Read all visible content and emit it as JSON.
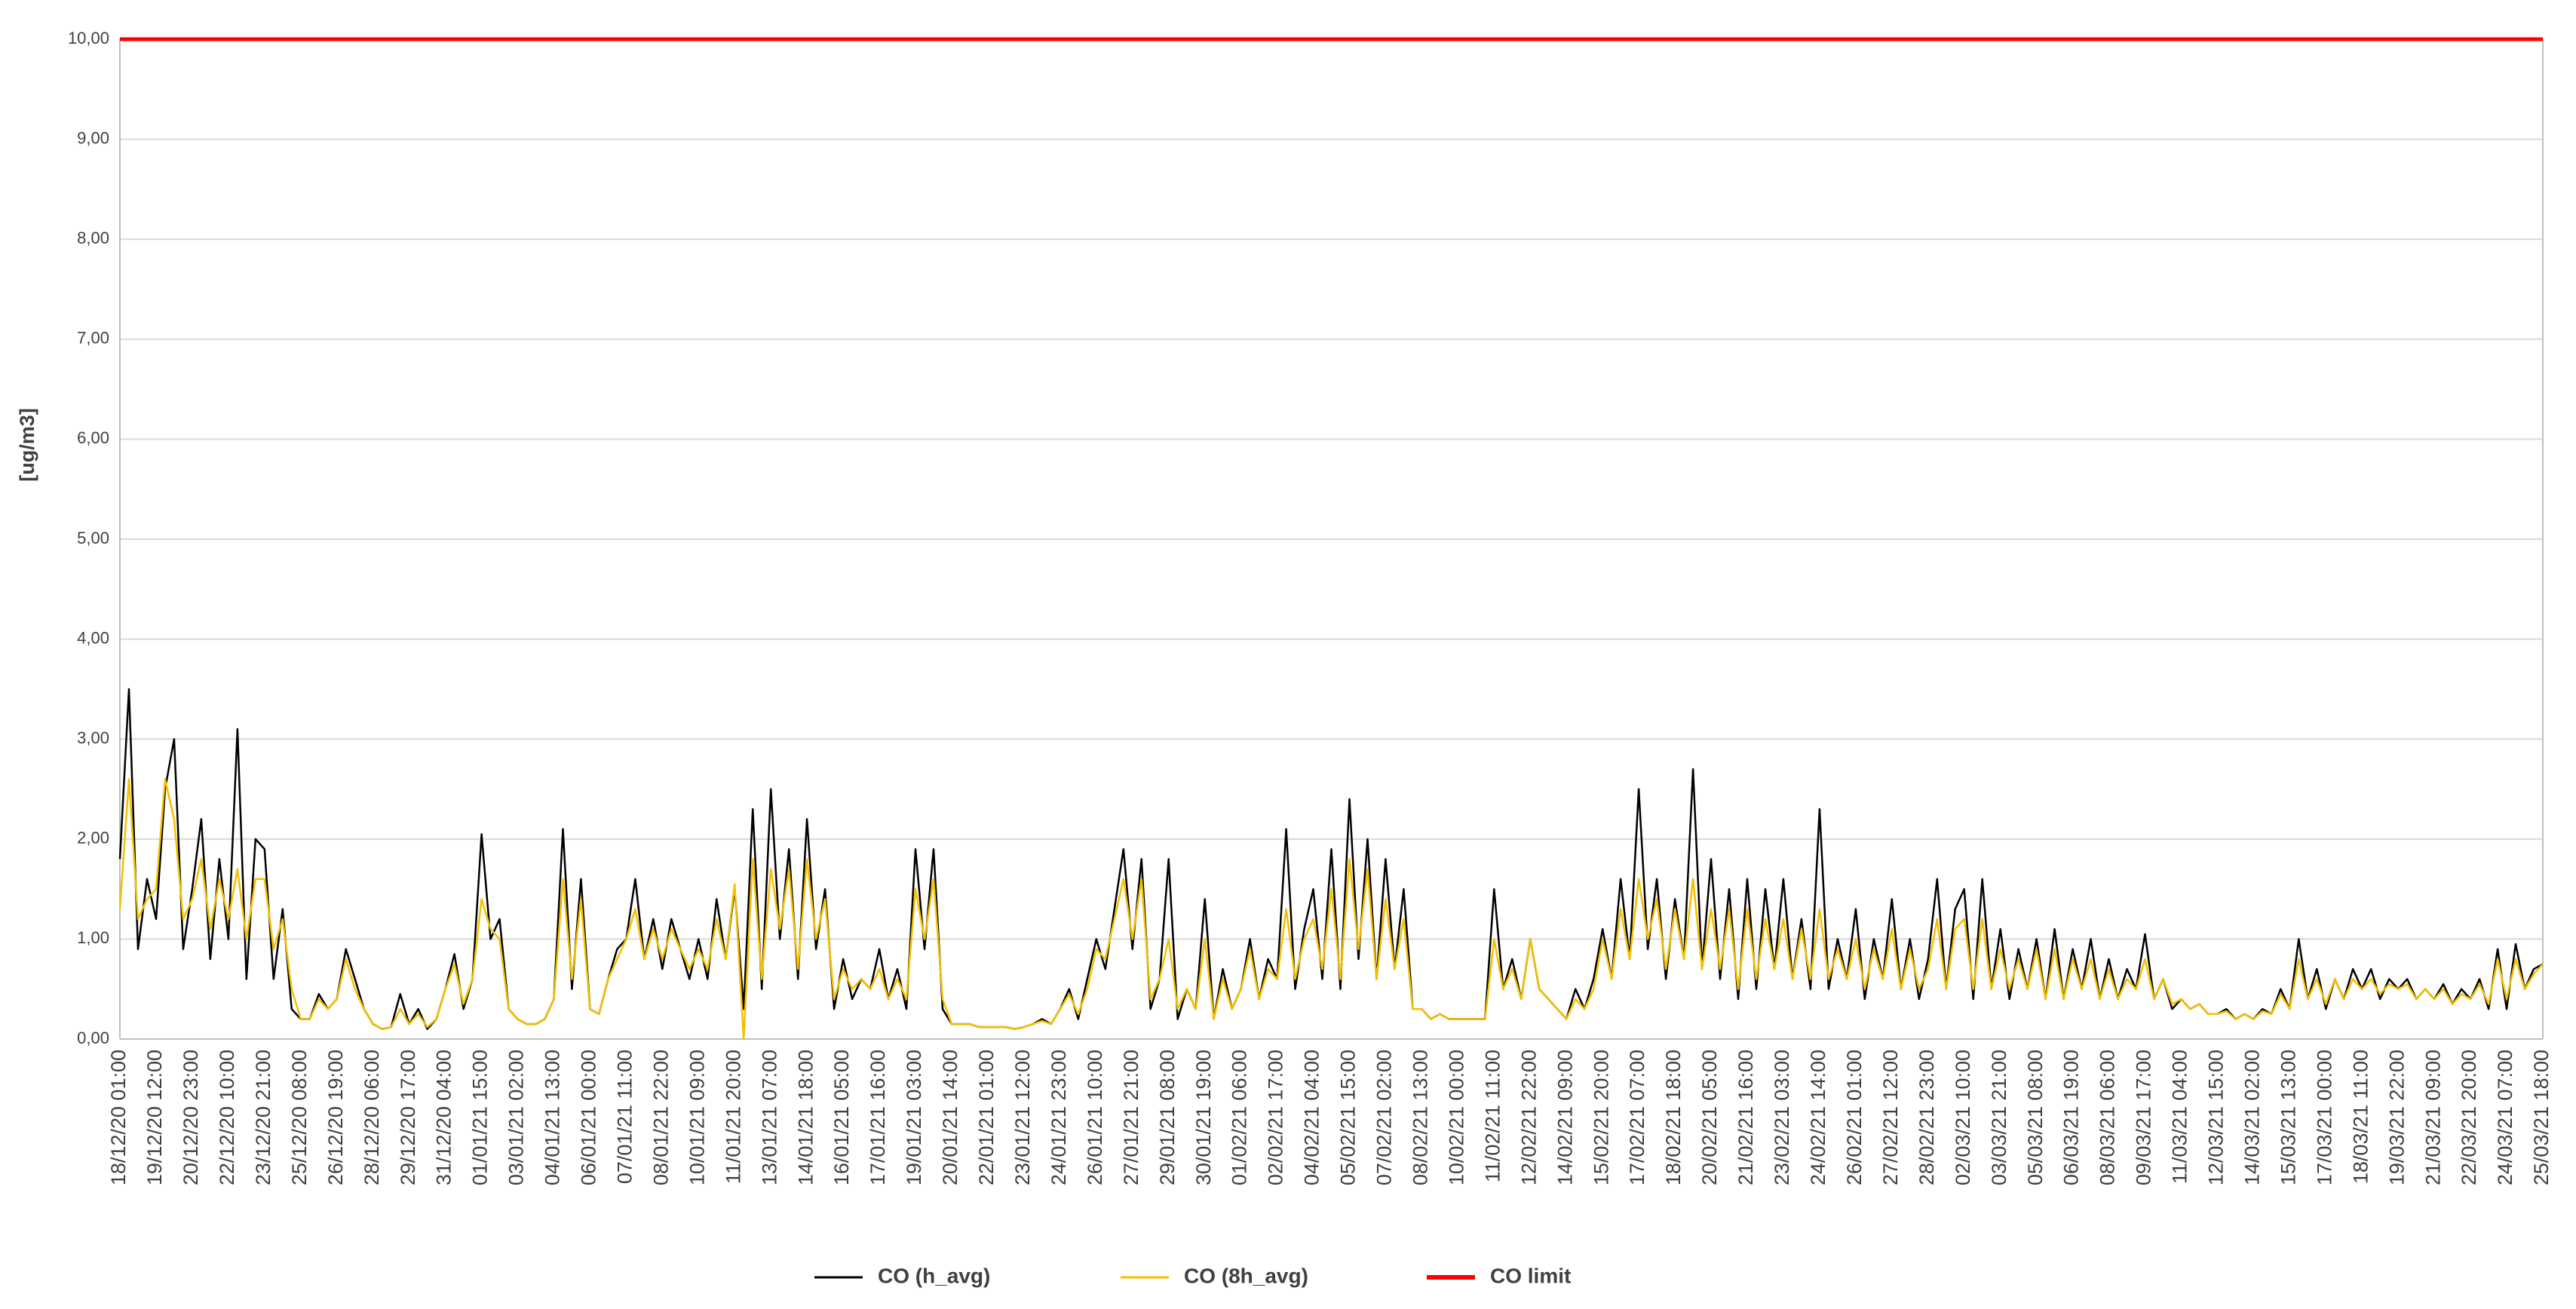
{
  "chart_data": {
    "type": "line",
    "y_label": "[ug/m3]",
    "ylim": [
      0,
      10
    ],
    "yticks": [
      {
        "value": 0,
        "label": "0,00"
      },
      {
        "value": 1,
        "label": "1,00"
      },
      {
        "value": 2,
        "label": "2,00"
      },
      {
        "value": 3,
        "label": "3,00"
      },
      {
        "value": 4,
        "label": "4,00"
      },
      {
        "value": 5,
        "label": "5,00"
      },
      {
        "value": 6,
        "label": "6,00"
      },
      {
        "value": 7,
        "label": "7,00"
      },
      {
        "value": 8,
        "label": "8,00"
      },
      {
        "value": 9,
        "label": "9,00"
      },
      {
        "value": 10,
        "label": "10,00"
      }
    ],
    "grid": true,
    "legend": "bottom",
    "categories": [
      "18/12/20 01:00",
      null,
      null,
      null,
      "19/12/20 12:00",
      null,
      null,
      null,
      "20/12/20 23:00",
      null,
      null,
      null,
      "22/12/20 10:00",
      null,
      null,
      null,
      "23/12/20 21:00",
      null,
      null,
      null,
      "25/12/20 08:00",
      null,
      null,
      null,
      "26/12/20 19:00",
      null,
      null,
      null,
      "28/12/20 06:00",
      null,
      null,
      null,
      "29/12/20 17:00",
      null,
      null,
      null,
      "31/12/20 04:00",
      null,
      null,
      null,
      "01/01/21 15:00",
      null,
      null,
      null,
      "03/01/21 02:00",
      null,
      null,
      null,
      "04/01/21 13:00",
      null,
      null,
      null,
      "06/01/21 00:00",
      null,
      null,
      null,
      "07/01/21 11:00",
      null,
      null,
      null,
      "08/01/21 22:00",
      null,
      null,
      null,
      "10/01/21 09:00",
      null,
      null,
      null,
      "11/01/21 20:00",
      null,
      null,
      null,
      "13/01/21 07:00",
      null,
      null,
      null,
      "14/01/21 18:00",
      null,
      null,
      null,
      "16/01/21 05:00",
      null,
      null,
      null,
      "17/01/21 16:00",
      null,
      null,
      null,
      "19/01/21 03:00",
      null,
      null,
      null,
      "20/01/21 14:00",
      null,
      null,
      null,
      "22/01/21 01:00",
      null,
      null,
      null,
      "23/01/21 12:00",
      null,
      null,
      null,
      "24/01/21 23:00",
      null,
      null,
      null,
      "26/01/21 10:00",
      null,
      null,
      null,
      "27/01/21 21:00",
      null,
      null,
      null,
      "29/01/21 08:00",
      null,
      null,
      null,
      "30/01/21 19:00",
      null,
      null,
      null,
      "01/02/21 06:00",
      null,
      null,
      null,
      "02/02/21 17:00",
      null,
      null,
      null,
      "04/02/21 04:00",
      null,
      null,
      null,
      "05/02/21 15:00",
      null,
      null,
      null,
      "07/02/21 02:00",
      null,
      null,
      null,
      "08/02/21 13:00",
      null,
      null,
      null,
      "10/02/21 00:00",
      null,
      null,
      null,
      "11/02/21 11:00",
      null,
      null,
      null,
      "12/02/21 22:00",
      null,
      null,
      null,
      "14/02/21 09:00",
      null,
      null,
      null,
      "15/02/21 20:00",
      null,
      null,
      null,
      "17/02/21 07:00",
      null,
      null,
      null,
      "18/02/21 18:00",
      null,
      null,
      null,
      "20/02/21 05:00",
      null,
      null,
      null,
      "21/02/21 16:00",
      null,
      null,
      null,
      "23/02/21 03:00",
      null,
      null,
      null,
      "24/02/21 14:00",
      null,
      null,
      null,
      "26/02/21 01:00",
      null,
      null,
      null,
      "27/02/21 12:00",
      null,
      null,
      null,
      "28/02/21 23:00",
      null,
      null,
      null,
      "02/03/21 10:00",
      null,
      null,
      null,
      "03/03/21 21:00",
      null,
      null,
      null,
      "05/03/21 08:00",
      null,
      null,
      null,
      "06/03/21 19:00",
      null,
      null,
      null,
      "08/03/21 06:00",
      null,
      null,
      null,
      "09/03/21 17:00",
      null,
      null,
      null,
      "11/03/21 04:00",
      null,
      null,
      null,
      "12/03/21 15:00",
      null,
      null,
      null,
      "14/03/21 02:00",
      null,
      null,
      null,
      "15/03/21 13:00",
      null,
      null,
      null,
      "17/03/21 00:00",
      null,
      null,
      null,
      "18/03/21 11:00",
      null,
      null,
      null,
      "19/03/21 22:00",
      null,
      null,
      null,
      "21/03/21 09:00",
      null,
      null,
      null,
      "22/03/21 20:00",
      null,
      null,
      null,
      "24/03/21 07:00",
      null,
      null,
      null,
      "25/03/21 18:00"
    ],
    "series": [
      {
        "name": "CO (h_avg)",
        "color": "#000000",
        "values": [
          1.8,
          3.5,
          0.9,
          1.6,
          1.2,
          2.5,
          3.0,
          0.9,
          1.5,
          2.2,
          0.8,
          1.8,
          1.0,
          3.1,
          0.6,
          2.0,
          1.9,
          0.6,
          1.3,
          0.3,
          0.2,
          0.2,
          0.45,
          0.3,
          0.4,
          0.9,
          0.6,
          0.3,
          0.15,
          0.1,
          0.12,
          0.45,
          0.15,
          0.3,
          0.1,
          0.2,
          0.5,
          0.85,
          0.3,
          0.6,
          2.05,
          1.0,
          1.2,
          0.3,
          0.2,
          0.15,
          0.15,
          0.2,
          0.4,
          2.1,
          0.5,
          1.6,
          0.3,
          0.25,
          0.6,
          0.9,
          1.0,
          1.6,
          0.8,
          1.2,
          0.7,
          1.2,
          0.9,
          0.6,
          1.0,
          0.6,
          1.4,
          0.8,
          1.5,
          0.3,
          2.3,
          0.5,
          2.5,
          1.0,
          1.9,
          0.6,
          2.2,
          0.9,
          1.5,
          0.3,
          0.8,
          0.4,
          0.6,
          0.5,
          0.9,
          0.4,
          0.7,
          0.3,
          1.9,
          0.9,
          1.9,
          0.3,
          0.15,
          0.15,
          0.15,
          0.12,
          0.12,
          0.12,
          0.12,
          0.1,
          0.12,
          0.15,
          0.2,
          0.15,
          0.3,
          0.5,
          0.2,
          0.6,
          1.0,
          0.7,
          1.3,
          1.9,
          0.9,
          1.8,
          0.3,
          0.6,
          1.8,
          0.2,
          0.5,
          0.3,
          1.4,
          0.2,
          0.7,
          0.3,
          0.5,
          1.0,
          0.4,
          0.8,
          0.6,
          2.1,
          0.5,
          1.1,
          1.5,
          0.6,
          1.9,
          0.5,
          2.4,
          0.8,
          2.0,
          0.6,
          1.8,
          0.7,
          1.5,
          0.3,
          0.3,
          0.2,
          0.25,
          0.2,
          0.2,
          0.2,
          0.2,
          0.2,
          1.5,
          0.5,
          0.8,
          0.4,
          1.0,
          0.5,
          0.4,
          0.3,
          0.2,
          0.5,
          0.3,
          0.6,
          1.1,
          0.6,
          1.6,
          0.8,
          2.5,
          0.9,
          1.6,
          0.6,
          1.4,
          0.8,
          2.7,
          0.7,
          1.8,
          0.6,
          1.5,
          0.4,
          1.6,
          0.5,
          1.5,
          0.7,
          1.6,
          0.6,
          1.2,
          0.5,
          2.3,
          0.5,
          1.0,
          0.6,
          1.3,
          0.4,
          1.0,
          0.6,
          1.4,
          0.5,
          1.0,
          0.4,
          0.8,
          1.6,
          0.5,
          1.3,
          1.5,
          0.4,
          1.6,
          0.5,
          1.1,
          0.4,
          0.9,
          0.5,
          1.0,
          0.4,
          1.1,
          0.4,
          0.9,
          0.5,
          1.0,
          0.4,
          0.8,
          0.4,
          0.7,
          0.5,
          1.05,
          0.4,
          0.6,
          0.3,
          0.4,
          0.3,
          0.35,
          0.25,
          0.25,
          0.3,
          0.2,
          0.25,
          0.2,
          0.3,
          0.25,
          0.5,
          0.3,
          1.0,
          0.4,
          0.7,
          0.3,
          0.6,
          0.4,
          0.7,
          0.5,
          0.7,
          0.4,
          0.6,
          0.5,
          0.6,
          0.4,
          0.5,
          0.4,
          0.55,
          0.35,
          0.5,
          0.4,
          0.6,
          0.3,
          0.9,
          0.3,
          0.95,
          0.5,
          0.7,
          0.75
        ]
      },
      {
        "name": "CO (8h_avg)",
        "color": "#f5c000",
        "values": [
          1.3,
          2.6,
          1.2,
          1.4,
          1.5,
          2.6,
          2.2,
          1.2,
          1.4,
          1.8,
          1.1,
          1.6,
          1.2,
          1.7,
          1.0,
          1.6,
          1.6,
          0.9,
          1.2,
          0.5,
          0.2,
          0.2,
          0.4,
          0.3,
          0.4,
          0.8,
          0.5,
          0.3,
          0.15,
          0.1,
          0.12,
          0.3,
          0.15,
          0.25,
          0.12,
          0.2,
          0.5,
          0.75,
          0.35,
          0.6,
          1.4,
          1.1,
          1.0,
          0.3,
          0.2,
          0.15,
          0.15,
          0.2,
          0.4,
          1.6,
          0.6,
          1.4,
          0.3,
          0.25,
          0.6,
          0.8,
          1.0,
          1.3,
          0.8,
          1.1,
          0.8,
          1.1,
          0.9,
          0.7,
          0.9,
          0.7,
          1.2,
          0.8,
          1.55,
          0.0,
          1.8,
          0.6,
          1.7,
          1.1,
          1.7,
          0.7,
          1.8,
          1.0,
          1.4,
          0.4,
          0.7,
          0.5,
          0.6,
          0.5,
          0.7,
          0.4,
          0.6,
          0.4,
          1.5,
          1.0,
          1.6,
          0.4,
          0.15,
          0.15,
          0.15,
          0.12,
          0.12,
          0.12,
          0.12,
          0.1,
          0.12,
          0.15,
          0.18,
          0.15,
          0.3,
          0.45,
          0.25,
          0.5,
          0.9,
          0.8,
          1.2,
          1.6,
          1.0,
          1.6,
          0.4,
          0.6,
          1.0,
          0.3,
          0.5,
          0.3,
          1.0,
          0.2,
          0.6,
          0.3,
          0.5,
          0.9,
          0.4,
          0.7,
          0.6,
          1.3,
          0.6,
          1.0,
          1.2,
          0.7,
          1.5,
          0.6,
          1.8,
          0.9,
          1.7,
          0.6,
          1.4,
          0.7,
          1.2,
          0.3,
          0.3,
          0.2,
          0.25,
          0.2,
          0.2,
          0.2,
          0.2,
          0.2,
          1.0,
          0.5,
          0.7,
          0.4,
          1.0,
          0.5,
          0.4,
          0.3,
          0.2,
          0.4,
          0.3,
          0.5,
          1.0,
          0.6,
          1.3,
          0.8,
          1.6,
          1.0,
          1.4,
          0.7,
          1.3,
          0.8,
          1.6,
          0.7,
          1.3,
          0.7,
          1.3,
          0.5,
          1.3,
          0.6,
          1.2,
          0.7,
          1.2,
          0.6,
          1.1,
          0.6,
          1.3,
          0.6,
          0.9,
          0.6,
          1.0,
          0.5,
          0.9,
          0.6,
          1.1,
          0.5,
          0.9,
          0.5,
          0.7,
          1.2,
          0.5,
          1.1,
          1.2,
          0.5,
          1.2,
          0.5,
          0.9,
          0.5,
          0.8,
          0.5,
          0.9,
          0.4,
          0.9,
          0.4,
          0.8,
          0.5,
          0.8,
          0.4,
          0.7,
          0.4,
          0.6,
          0.5,
          0.8,
          0.4,
          0.6,
          0.35,
          0.4,
          0.3,
          0.35,
          0.25,
          0.25,
          0.28,
          0.2,
          0.25,
          0.2,
          0.28,
          0.25,
          0.45,
          0.3,
          0.8,
          0.4,
          0.6,
          0.35,
          0.6,
          0.4,
          0.6,
          0.5,
          0.6,
          0.45,
          0.55,
          0.5,
          0.55,
          0.4,
          0.5,
          0.4,
          0.5,
          0.35,
          0.45,
          0.4,
          0.55,
          0.35,
          0.8,
          0.4,
          0.8,
          0.5,
          0.65,
          0.75
        ]
      },
      {
        "name": "CO limit",
        "color": "#ff0000",
        "values": [
          10,
          10,
          10,
          10,
          10,
          10,
          10,
          10,
          10,
          10,
          10,
          10,
          10,
          10,
          10,
          10,
          10,
          10,
          10,
          10,
          10,
          10,
          10,
          10,
          10,
          10,
          10,
          10,
          10,
          10,
          10,
          10,
          10,
          10,
          10,
          10,
          10,
          10,
          10,
          10,
          10,
          10,
          10,
          10,
          10,
          10,
          10,
          10,
          10,
          10,
          10,
          10,
          10,
          10,
          10,
          10,
          10,
          10,
          10,
          10,
          10,
          10,
          10,
          10,
          10,
          10,
          10,
          10,
          10,
          10,
          10,
          10,
          10,
          10,
          10,
          10,
          10,
          10,
          10,
          10,
          10,
          10,
          10,
          10,
          10,
          10,
          10,
          10,
          10,
          10,
          10,
          10,
          10,
          10,
          10,
          10,
          10,
          10,
          10,
          10,
          10,
          10,
          10,
          10,
          10,
          10,
          10,
          10,
          10,
          10,
          10,
          10,
          10,
          10,
          10,
          10,
          10,
          10,
          10,
          10,
          10,
          10,
          10,
          10,
          10,
          10,
          10,
          10,
          10,
          10,
          10,
          10,
          10,
          10,
          10,
          10,
          10,
          10,
          10,
          10,
          10,
          10,
          10,
          10,
          10,
          10,
          10,
          10,
          10,
          10,
          10,
          10,
          10,
          10,
          10,
          10,
          10,
          10,
          10,
          10,
          10,
          10,
          10,
          10,
          10,
          10,
          10,
          10,
          10,
          10,
          10,
          10,
          10,
          10,
          10,
          10,
          10,
          10,
          10,
          10,
          10,
          10,
          10,
          10,
          10,
          10,
          10,
          10,
          10,
          10,
          10,
          10,
          10,
          10,
          10,
          10,
          10,
          10,
          10,
          10,
          10,
          10,
          10,
          10,
          10,
          10,
          10,
          10,
          10,
          10,
          10,
          10,
          10,
          10,
          10,
          10,
          10,
          10,
          10,
          10,
          10,
          10,
          10,
          10,
          10,
          10,
          10,
          10,
          10,
          10,
          10,
          10,
          10,
          10,
          10,
          10,
          10,
          10,
          10,
          10,
          10,
          10,
          10,
          10,
          10,
          10,
          10,
          10,
          10,
          10,
          10,
          10,
          10,
          10,
          10,
          10,
          10,
          10,
          10,
          10,
          10,
          10,
          10,
          10,
          10,
          10,
          10,
          10,
          10
        ]
      }
    ]
  }
}
